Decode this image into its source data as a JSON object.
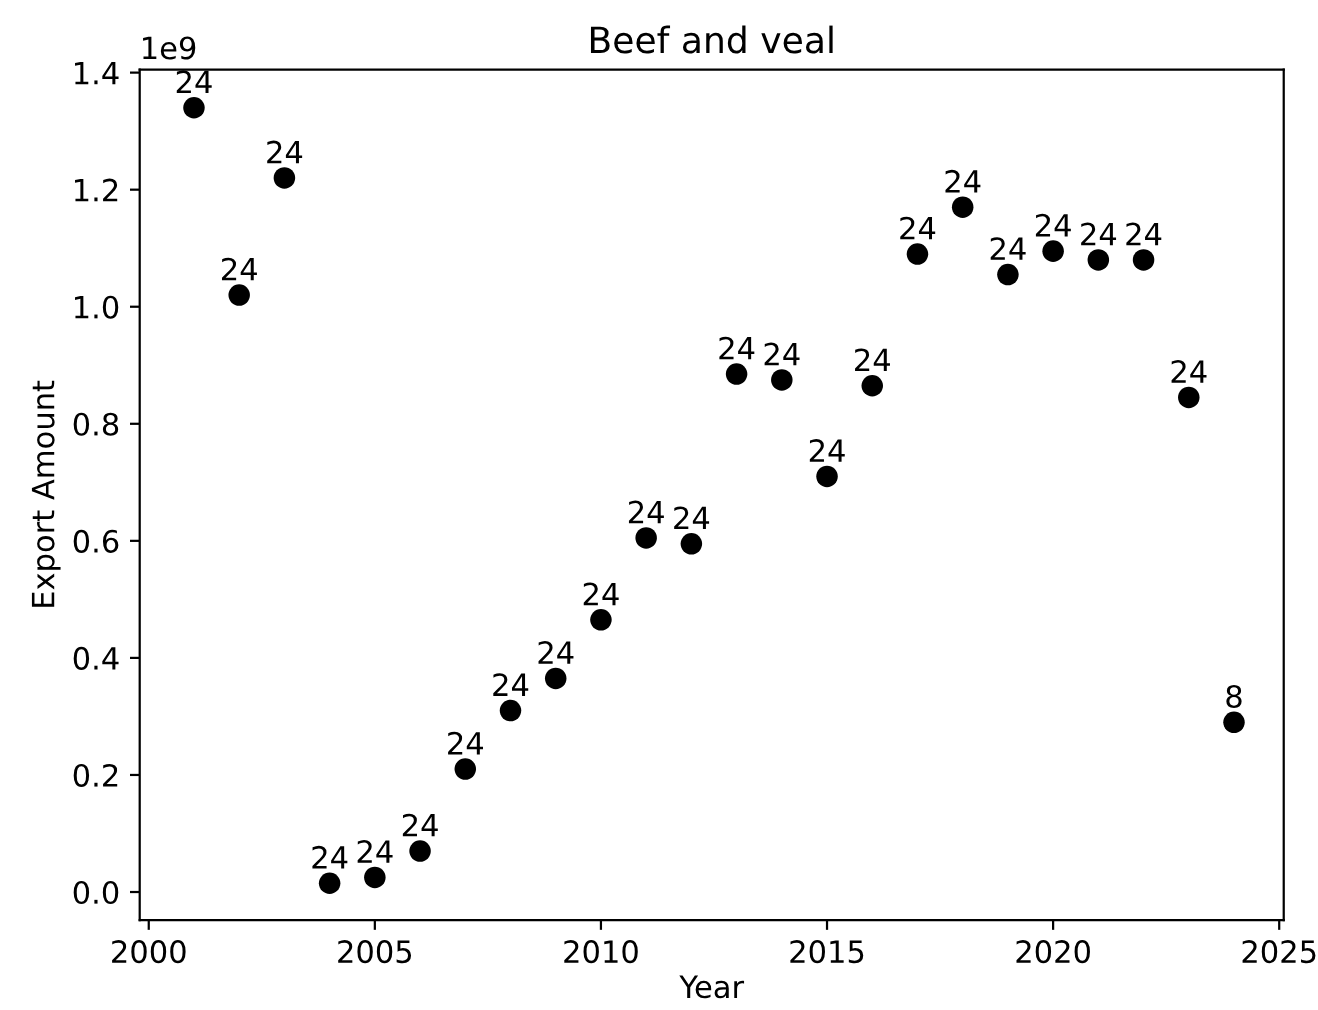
{
  "chart_data": {
    "type": "scatter",
    "title": "Beef and veal",
    "xlabel": "Year",
    "ylabel": "Export Amount",
    "x": [
      2001,
      2002,
      2003,
      2004,
      2005,
      2006,
      2007,
      2008,
      2009,
      2010,
      2011,
      2012,
      2013,
      2014,
      2015,
      2016,
      2017,
      2018,
      2019,
      2020,
      2021,
      2022,
      2023,
      2024
    ],
    "series": [
      {
        "color": "#000000",
        "values": [
          1.34,
          1.02,
          1.22,
          0.015,
          0.025,
          0.07,
          0.21,
          0.31,
          0.365,
          0.465,
          0.605,
          0.595,
          0.885,
          0.875,
          0.71,
          0.865,
          1.09,
          1.17,
          1.055,
          1.095,
          1.08,
          1.08,
          0.845,
          0.29
        ]
      }
    ],
    "value_labels": [
      "24",
      "24",
      "24",
      "24",
      "24",
      "24",
      "24",
      "24",
      "24",
      "24",
      "24",
      "24",
      "24",
      "24",
      "24",
      "24",
      "24",
      "24",
      "24",
      "24",
      "24",
      "24",
      "24",
      "8"
    ],
    "annotations": [
      "1e9"
    ],
    "xlim": [
      1999.8,
      2025.1
    ],
    "ylim": [
      -0.048,
      1.405
    ],
    "xticks": [
      2000,
      2005,
      2010,
      2015,
      2020,
      2025
    ],
    "yticks": [
      {
        "value": 0,
        "label": "0.0"
      },
      0.2,
      0.4,
      0.6,
      0.8,
      {
        "value": 1,
        "label": "1.0"
      },
      1.2,
      1.4
    ],
    "marker": "circle",
    "grid": false
  }
}
